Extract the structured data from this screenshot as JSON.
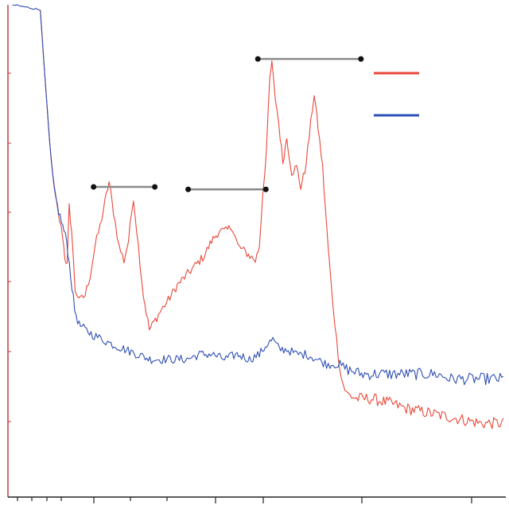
{
  "chart_data": {
    "type": "line",
    "title": "",
    "xlabel": "",
    "ylabel": "",
    "x_range": [
      0,
      100
    ],
    "y_range": [
      0,
      100
    ],
    "grid": false,
    "colors": {
      "red_series": "#e8483a",
      "blue_series": "#2e4fb4",
      "bracket": "#8a8a8a",
      "axis": "#c23a3a",
      "ticks": "#222222"
    },
    "series": [
      {
        "color_key": "red_series",
        "points": [
          [
            6.5,
            99
          ],
          [
            7.3,
            87
          ],
          [
            8.3,
            73
          ],
          [
            9.0,
            65
          ],
          [
            10,
            58
          ],
          [
            11,
            53
          ],
          [
            11.4,
            49
          ],
          [
            11.9,
            47
          ],
          [
            12.3,
            59
          ],
          [
            12.8,
            54
          ],
          [
            13.5,
            42
          ],
          [
            14.5,
            40
          ],
          [
            15.5,
            41
          ],
          [
            16.5,
            45
          ],
          [
            17.5,
            51
          ],
          [
            18.5,
            55
          ],
          [
            19.5,
            60
          ],
          [
            20.3,
            64
          ],
          [
            21.2,
            58
          ],
          [
            22.3,
            51
          ],
          [
            23.3,
            48
          ],
          [
            24.2,
            52
          ],
          [
            25.2,
            61
          ],
          [
            26.2,
            51
          ],
          [
            27.2,
            41
          ],
          [
            28.4,
            34
          ],
          [
            29.6,
            36
          ],
          [
            30.8,
            38
          ],
          [
            32.2,
            40
          ],
          [
            34.0,
            43
          ],
          [
            35.8,
            45
          ],
          [
            37.6,
            47
          ],
          [
            39.4,
            49
          ],
          [
            40.9,
            52
          ],
          [
            42.4,
            54
          ],
          [
            43.8,
            54
          ],
          [
            45.0,
            55
          ],
          [
            46.2,
            51
          ],
          [
            47.4,
            50
          ],
          [
            48.6,
            49
          ],
          [
            49.7,
            48
          ],
          [
            50.5,
            51
          ],
          [
            51.2,
            62
          ],
          [
            51.9,
            70
          ],
          [
            52.6,
            85
          ],
          [
            53.0,
            88
          ],
          [
            53.7,
            81
          ],
          [
            54.4,
            76
          ],
          [
            55.2,
            68
          ],
          [
            56.0,
            73
          ],
          [
            57.0,
            66
          ],
          [
            58.0,
            67
          ],
          [
            58.8,
            63
          ],
          [
            59.6,
            66
          ],
          [
            60.5,
            73
          ],
          [
            61.5,
            82
          ],
          [
            62.3,
            75
          ],
          [
            63.2,
            67
          ],
          [
            64.0,
            55
          ],
          [
            65.0,
            42
          ],
          [
            66.0,
            32
          ],
          [
            67.0,
            24
          ],
          [
            68.0,
            21
          ],
          [
            70.0,
            20
          ],
          [
            73.0,
            20
          ],
          [
            77.0,
            19
          ],
          [
            80.0,
            18
          ],
          [
            85.0,
            17
          ],
          [
            90.0,
            16
          ],
          [
            95.0,
            15
          ],
          [
            99.5,
            15
          ]
        ]
      },
      {
        "color_key": "blue_series",
        "points": [
          [
            0.9,
            100
          ],
          [
            6.5,
            99
          ],
          [
            7.3,
            87
          ],
          [
            8.3,
            73
          ],
          [
            9.3,
            62
          ],
          [
            10.2,
            58
          ],
          [
            11.0,
            55
          ],
          [
            11.8,
            52
          ],
          [
            12.6,
            45
          ],
          [
            13.4,
            38
          ],
          [
            14.3,
            35
          ],
          [
            15.5,
            34
          ],
          [
            17.0,
            33
          ],
          [
            19.0,
            32
          ],
          [
            21.0,
            31
          ],
          [
            23.5,
            30
          ],
          [
            26.0,
            29
          ],
          [
            28.5,
            28
          ],
          [
            31.0,
            28
          ],
          [
            33.5,
            28
          ],
          [
            36.0,
            28
          ],
          [
            38.5,
            29
          ],
          [
            41.0,
            29
          ],
          [
            43.5,
            28
          ],
          [
            46.0,
            29
          ],
          [
            48.5,
            28
          ],
          [
            50.5,
            29
          ],
          [
            52.0,
            31
          ],
          [
            53.2,
            32
          ],
          [
            54.5,
            30
          ],
          [
            56.0,
            30
          ],
          [
            58.0,
            29
          ],
          [
            60.0,
            29
          ],
          [
            62.0,
            28
          ],
          [
            64.0,
            27
          ],
          [
            66.0,
            27
          ],
          [
            68.0,
            26
          ],
          [
            71.0,
            25
          ],
          [
            74.0,
            25
          ],
          [
            77.0,
            25
          ],
          [
            80.0,
            25
          ],
          [
            83.0,
            25
          ],
          [
            86.0,
            25
          ],
          [
            89.0,
            24
          ],
          [
            92.0,
            24
          ],
          [
            95.0,
            24
          ],
          [
            99.5,
            24
          ]
        ]
      }
    ],
    "brackets": [
      {
        "x": [
          17.2,
          29.5
        ],
        "y": 63
      },
      {
        "x": [
          36.2,
          51.8
        ],
        "y": 62.5
      },
      {
        "x": [
          50.2,
          70.9
        ],
        "y": 89
      }
    ],
    "legend": {
      "placement": "top-right",
      "entries": [
        {
          "label": "",
          "color_key": "red_series"
        },
        {
          "label": "",
          "color_key": "blue_series"
        }
      ]
    }
  }
}
